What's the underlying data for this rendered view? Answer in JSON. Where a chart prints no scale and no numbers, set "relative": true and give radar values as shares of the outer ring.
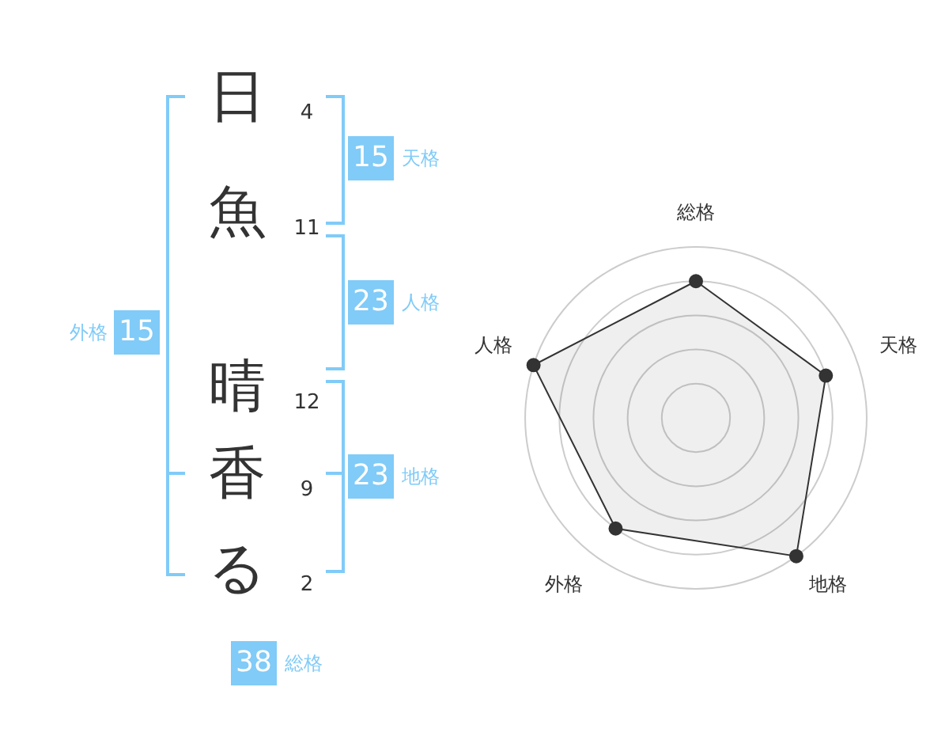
{
  "chart_data": [
    {
      "type": "other",
      "categories": [
        "日",
        "魚",
        "晴",
        "香",
        "る"
      ],
      "values": [
        4,
        11,
        12,
        9,
        2
      ],
      "color": "#333333",
      "data_labels": true
    },
    {
      "type": "other",
      "categories": [
        "天格",
        "人格",
        "地格",
        "外格",
        "総格"
      ],
      "values": [
        15,
        23,
        23,
        15,
        38
      ],
      "color": "#80cbf8",
      "data_labels": true
    },
    {
      "type": "radar",
      "categories": [
        "総格",
        "天格",
        "地格",
        "外格",
        "人格"
      ],
      "relative": true,
      "grid": true,
      "legend": false,
      "marker": "circle",
      "series": [
        {
          "color": "#333333",
          "values": [
            0.8,
            0.8,
            1,
            0.8,
            1
          ]
        }
      ]
    }
  ]
}
